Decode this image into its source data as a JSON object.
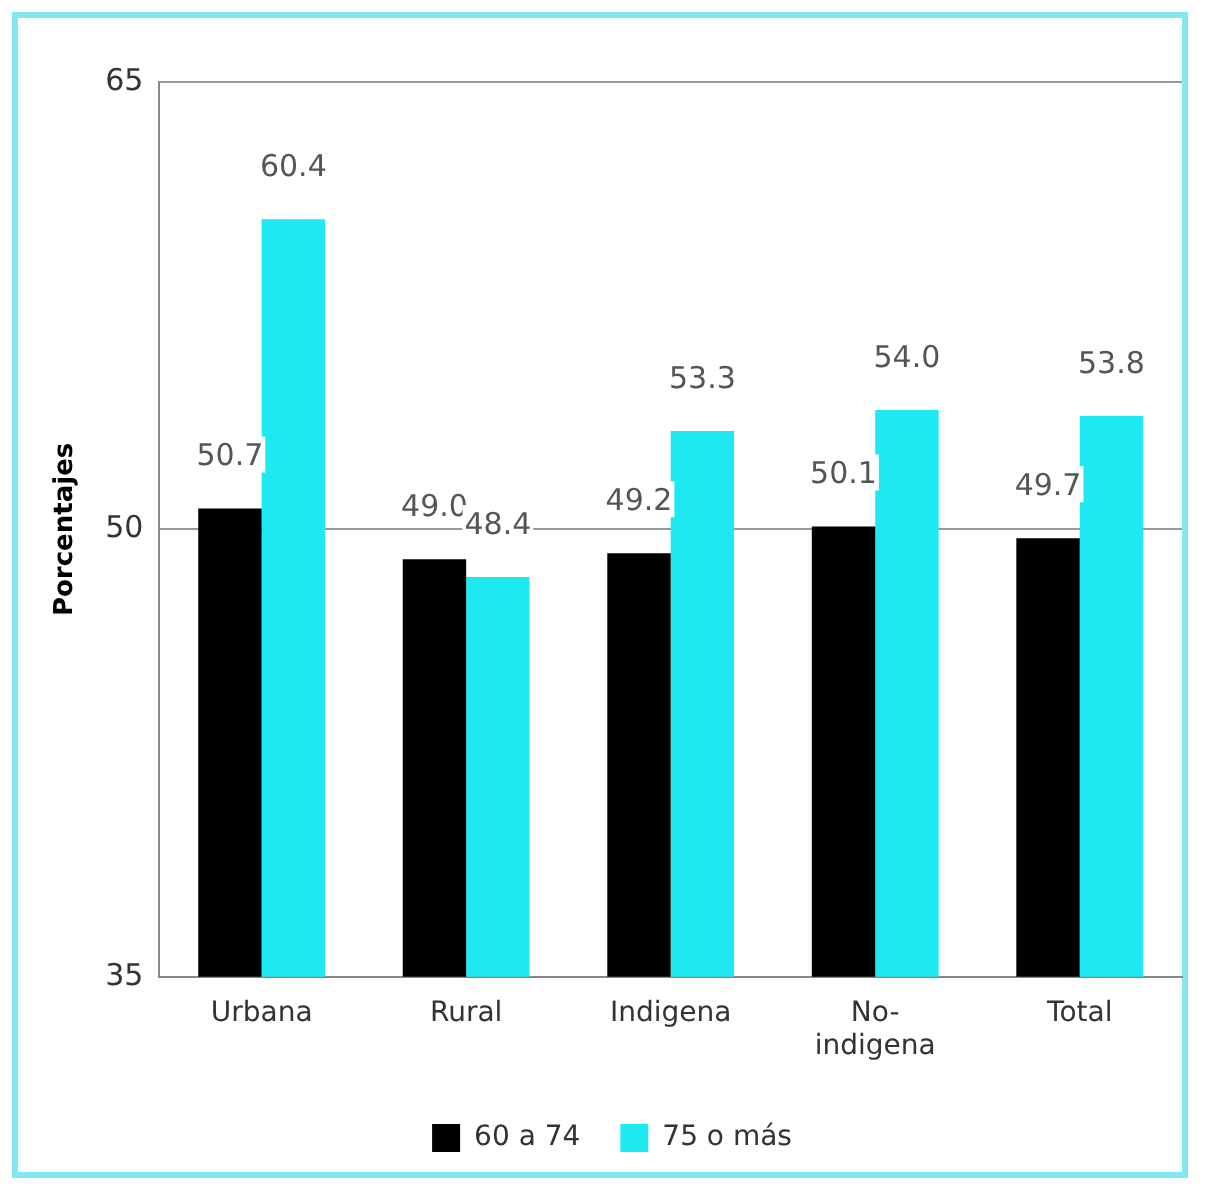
{
  "chart_data": {
    "type": "bar",
    "ylabel": "Porcentajes",
    "categories": [
      "Urbana",
      "Rural",
      "Indigena",
      "No-indigena",
      "Total"
    ],
    "series": [
      {
        "name": "60 a 74",
        "color": "#000000",
        "values": [
          50.7,
          49.0,
          49.2,
          50.1,
          49.7
        ],
        "value_labels": [
          "50.7",
          "49.0",
          "49.2",
          "50.1",
          "49.7"
        ]
      },
      {
        "name": "75 o más",
        "color": "#1ee8f0",
        "values": [
          60.4,
          48.4,
          53.3,
          54.0,
          53.8
        ],
        "value_labels": [
          "60.4",
          "48.4",
          "53.3",
          "54.0",
          "53.8"
        ]
      }
    ],
    "ylim": [
      35,
      65
    ],
    "yticks": [
      35,
      50,
      65
    ],
    "grid": "y",
    "legend": "bottom"
  }
}
